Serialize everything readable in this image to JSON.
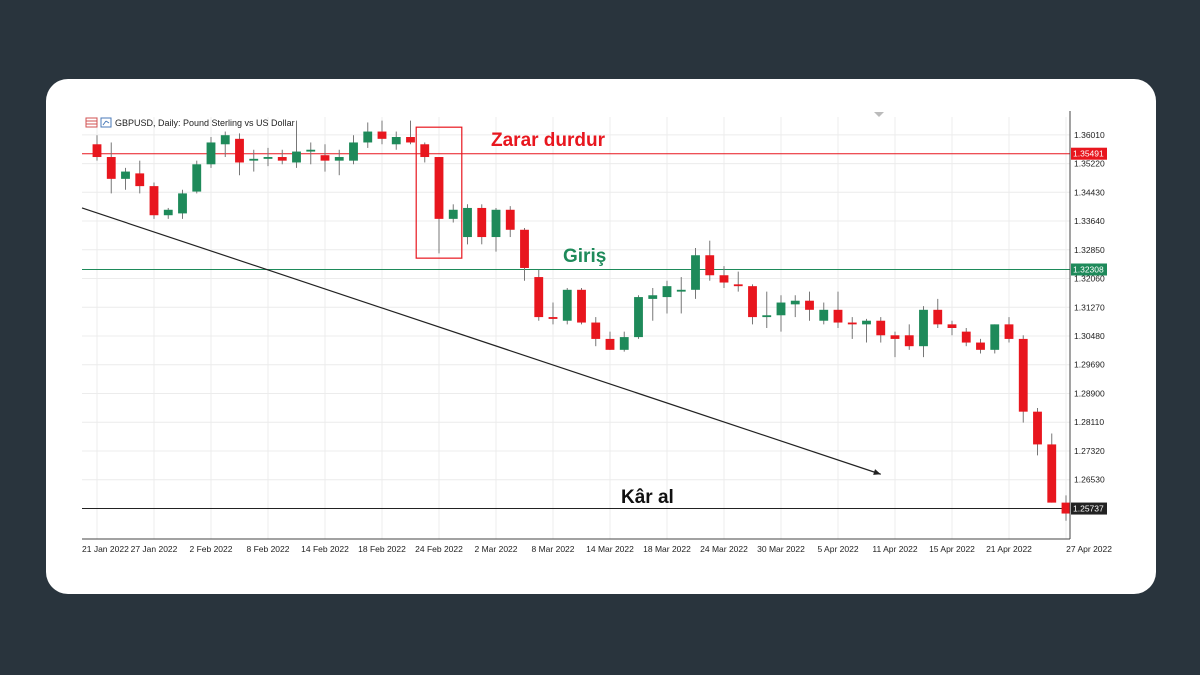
{
  "colors": {
    "page_bg": "#29343d",
    "card_bg": "#ffffff",
    "bull": "#1e8a5a",
    "bear": "#e8161e",
    "grid": "#ececec",
    "stop_line": "#e8161e",
    "entry_line": "#1e8a5a",
    "tp_line": "#222222"
  },
  "header": {
    "symbol_title": "GBPUSD, Daily:  Pound Sterling vs US Dollar"
  },
  "annotations": {
    "stop_loss": "Zarar durdur",
    "entry": "Giriş",
    "take_profit": "Kâr al"
  },
  "chart_data": {
    "type": "candlestick",
    "symbol": "GBPUSD",
    "timeframe": "Daily",
    "title": "GBPUSD, Daily:  Pound Sterling vs US Dollar",
    "ylim": [
      1.249,
      1.365
    ],
    "y_ticks": [
      "1.36010",
      "1.35220",
      "1.34430",
      "1.33640",
      "1.32850",
      "1.32060",
      "1.31270",
      "1.30480",
      "1.29690",
      "1.28900",
      "1.28110",
      "1.27320",
      "1.26530",
      "1.25737"
    ],
    "x_ticks": [
      "21 Jan 2022",
      "27 Jan 2022",
      "2 Feb 2022",
      "8 Feb 2022",
      "14 Feb 2022",
      "18 Feb 2022",
      "24 Feb 2022",
      "2 Mar 2022",
      "8 Mar 2022",
      "14 Mar 2022",
      "18 Mar 2022",
      "24 Mar 2022",
      "30 Mar 2022",
      "5 Apr 2022",
      "11 Apr 2022",
      "15 Apr 2022",
      "21 Apr 2022",
      "27 Apr 2022"
    ],
    "grid": true,
    "levels": [
      {
        "name": "Zarar durdur",
        "value": 1.35491,
        "label": "1.35491",
        "color": "#e8161e"
      },
      {
        "name": "Giriş",
        "value": 1.32308,
        "label": "1.32308",
        "color": "#1e8a5a"
      },
      {
        "name": "Kâr al",
        "value": 1.25737,
        "label": "1.25737",
        "color": "#222222"
      }
    ],
    "highlight_box": {
      "from_candle": 23,
      "to_candle": 25,
      "y_top": 1.3622,
      "y_bottom": 1.3262
    },
    "trend_arrow": {
      "from_candle": 0,
      "from_value": 1.34,
      "to_candle": 55,
      "to_value": 1.2668
    },
    "candles": [
      {
        "o": 1.3575,
        "h": 1.36,
        "l": 1.353,
        "c": 1.354
      },
      {
        "o": 1.354,
        "h": 1.358,
        "l": 1.344,
        "c": 1.348
      },
      {
        "o": 1.348,
        "h": 1.351,
        "l": 1.345,
        "c": 1.35
      },
      {
        "o": 1.3495,
        "h": 1.353,
        "l": 1.344,
        "c": 1.346
      },
      {
        "o": 1.346,
        "h": 1.347,
        "l": 1.337,
        "c": 1.338
      },
      {
        "o": 1.338,
        "h": 1.34,
        "l": 1.337,
        "c": 1.3395
      },
      {
        "o": 1.3385,
        "h": 1.345,
        "l": 1.337,
        "c": 1.344
      },
      {
        "o": 1.3445,
        "h": 1.353,
        "l": 1.344,
        "c": 1.352
      },
      {
        "o": 1.352,
        "h": 1.3595,
        "l": 1.351,
        "c": 1.358
      },
      {
        "o": 1.3575,
        "h": 1.361,
        "l": 1.354,
        "c": 1.36
      },
      {
        "o": 1.359,
        "h": 1.3605,
        "l": 1.349,
        "c": 1.3525
      },
      {
        "o": 1.353,
        "h": 1.356,
        "l": 1.35,
        "c": 1.3535
      },
      {
        "o": 1.3535,
        "h": 1.3565,
        "l": 1.3515,
        "c": 1.354
      },
      {
        "o": 1.354,
        "h": 1.356,
        "l": 1.352,
        "c": 1.353
      },
      {
        "o": 1.3525,
        "h": 1.364,
        "l": 1.351,
        "c": 1.3555
      },
      {
        "o": 1.3555,
        "h": 1.358,
        "l": 1.352,
        "c": 1.356
      },
      {
        "o": 1.3545,
        "h": 1.3575,
        "l": 1.35,
        "c": 1.353
      },
      {
        "o": 1.353,
        "h": 1.356,
        "l": 1.349,
        "c": 1.354
      },
      {
        "o": 1.353,
        "h": 1.36,
        "l": 1.352,
        "c": 1.358
      },
      {
        "o": 1.358,
        "h": 1.3635,
        "l": 1.3565,
        "c": 1.361
      },
      {
        "o": 1.361,
        "h": 1.364,
        "l": 1.3575,
        "c": 1.359
      },
      {
        "o": 1.3575,
        "h": 1.361,
        "l": 1.356,
        "c": 1.3595
      },
      {
        "o": 1.3595,
        "h": 1.364,
        "l": 1.3575,
        "c": 1.358
      },
      {
        "o": 1.3575,
        "h": 1.358,
        "l": 1.3525,
        "c": 1.354
      },
      {
        "o": 1.354,
        "h": 1.354,
        "l": 1.3275,
        "c": 1.337
      },
      {
        "o": 1.337,
        "h": 1.341,
        "l": 1.336,
        "c": 1.3395
      },
      {
        "o": 1.332,
        "h": 1.341,
        "l": 1.33,
        "c": 1.34
      },
      {
        "o": 1.34,
        "h": 1.341,
        "l": 1.33,
        "c": 1.332
      },
      {
        "o": 1.332,
        "h": 1.34,
        "l": 1.328,
        "c": 1.3395
      },
      {
        "o": 1.3395,
        "h": 1.3405,
        "l": 1.332,
        "c": 1.334
      },
      {
        "o": 1.334,
        "h": 1.3345,
        "l": 1.32,
        "c": 1.3235
      },
      {
        "o": 1.321,
        "h": 1.323,
        "l": 1.309,
        "c": 1.31
      },
      {
        "o": 1.31,
        "h": 1.314,
        "l": 1.308,
        "c": 1.3095
      },
      {
        "o": 1.309,
        "h": 1.318,
        "l": 1.308,
        "c": 1.3175
      },
      {
        "o": 1.3175,
        "h": 1.318,
        "l": 1.308,
        "c": 1.3085
      },
      {
        "o": 1.3085,
        "h": 1.31,
        "l": 1.302,
        "c": 1.304
      },
      {
        "o": 1.304,
        "h": 1.306,
        "l": 1.301,
        "c": 1.301
      },
      {
        "o": 1.301,
        "h": 1.306,
        "l": 1.3005,
        "c": 1.3045
      },
      {
        "o": 1.3045,
        "h": 1.316,
        "l": 1.304,
        "c": 1.3155
      },
      {
        "o": 1.315,
        "h": 1.318,
        "l": 1.309,
        "c": 1.316
      },
      {
        "o": 1.3155,
        "h": 1.32,
        "l": 1.311,
        "c": 1.3185
      },
      {
        "o": 1.317,
        "h": 1.321,
        "l": 1.311,
        "c": 1.3175
      },
      {
        "o": 1.3175,
        "h": 1.329,
        "l": 1.315,
        "c": 1.327
      },
      {
        "o": 1.327,
        "h": 1.331,
        "l": 1.32,
        "c": 1.3215
      },
      {
        "o": 1.3215,
        "h": 1.324,
        "l": 1.318,
        "c": 1.3195
      },
      {
        "o": 1.319,
        "h": 1.3225,
        "l": 1.317,
        "c": 1.3185
      },
      {
        "o": 1.3185,
        "h": 1.319,
        "l": 1.308,
        "c": 1.31
      },
      {
        "o": 1.31,
        "h": 1.317,
        "l": 1.307,
        "c": 1.3105
      },
      {
        "o": 1.3105,
        "h": 1.316,
        "l": 1.306,
        "c": 1.314
      },
      {
        "o": 1.3135,
        "h": 1.316,
        "l": 1.31,
        "c": 1.3145
      },
      {
        "o": 1.3145,
        "h": 1.317,
        "l": 1.309,
        "c": 1.312
      },
      {
        "o": 1.309,
        "h": 1.314,
        "l": 1.308,
        "c": 1.312
      },
      {
        "o": 1.312,
        "h": 1.317,
        "l": 1.307,
        "c": 1.3085
      },
      {
        "o": 1.3085,
        "h": 1.31,
        "l": 1.304,
        "c": 1.308
      },
      {
        "o": 1.308,
        "h": 1.3095,
        "l": 1.303,
        "c": 1.309
      },
      {
        "o": 1.309,
        "h": 1.31,
        "l": 1.303,
        "c": 1.305
      },
      {
        "o": 1.305,
        "h": 1.306,
        "l": 1.299,
        "c": 1.304
      },
      {
        "o": 1.305,
        "h": 1.308,
        "l": 1.301,
        "c": 1.302
      },
      {
        "o": 1.302,
        "h": 1.313,
        "l": 1.299,
        "c": 1.312
      },
      {
        "o": 1.312,
        "h": 1.315,
        "l": 1.307,
        "c": 1.308
      },
      {
        "o": 1.308,
        "h": 1.309,
        "l": 1.305,
        "c": 1.307
      },
      {
        "o": 1.306,
        "h": 1.307,
        "l": 1.302,
        "c": 1.303
      },
      {
        "o": 1.303,
        "h": 1.304,
        "l": 1.3,
        "c": 1.301
      },
      {
        "o": 1.301,
        "h": 1.308,
        "l": 1.3,
        "c": 1.308
      },
      {
        "o": 1.308,
        "h": 1.31,
        "l": 1.303,
        "c": 1.304
      },
      {
        "o": 1.304,
        "h": 1.305,
        "l": 1.281,
        "c": 1.284
      },
      {
        "o": 1.284,
        "h": 1.285,
        "l": 1.272,
        "c": 1.275
      },
      {
        "o": 1.275,
        "h": 1.278,
        "l": 1.259,
        "c": 1.259
      },
      {
        "o": 1.259,
        "h": 1.261,
        "l": 1.254,
        "c": 1.256
      }
    ]
  }
}
